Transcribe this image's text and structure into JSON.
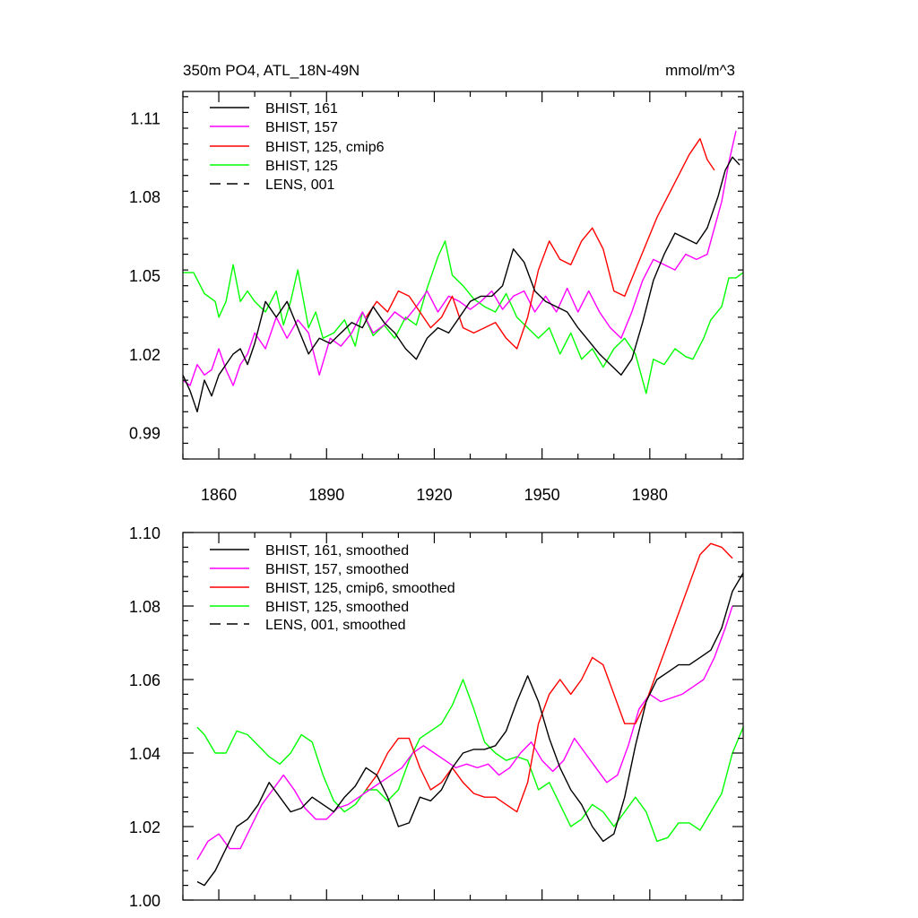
{
  "chart_data": [
    {
      "type": "line",
      "title": "350m PO4, ATL_18N-49N",
      "units": "mmol/m^3",
      "xlim": [
        1850,
        2006
      ],
      "ylim": [
        0.98,
        1.12
      ],
      "xticks": [
        1860,
        1890,
        1920,
        1950,
        1980
      ],
      "yticks": [
        0.99,
        1.02,
        1.05,
        1.08,
        1.11
      ],
      "ytick_labels": [
        "0.99",
        "1.02",
        "1.05",
        "1.08",
        "1.11"
      ],
      "legend": {
        "position": "top-left",
        "entries": [
          {
            "label": "BHIST, 161",
            "color": "#000000",
            "dash": false
          },
          {
            "label": "BHIST, 157",
            "color": "#ff00ff",
            "dash": false
          },
          {
            "label": "BHIST, 125, cmip6",
            "color": "#ff0000",
            "dash": false
          },
          {
            "label": "BHIST, 125",
            "color": "#00ff00",
            "dash": false
          },
          {
            "label": "LENS, 001",
            "color": "#000000",
            "dash": true
          }
        ]
      },
      "series": [
        {
          "name": "BHIST, 125",
          "color": "#00ff00",
          "x": [
            1850,
            1853,
            1856,
            1859,
            1860,
            1862,
            1864,
            1866,
            1868,
            1870,
            1873,
            1876,
            1878,
            1880,
            1882,
            1885,
            1887,
            1889,
            1892,
            1895,
            1898,
            1900,
            1903,
            1906,
            1909,
            1912,
            1915,
            1918,
            1921,
            1923,
            1925,
            1928,
            1931,
            1934,
            1937,
            1940,
            1943,
            1946,
            1949,
            1952,
            1955,
            1958,
            1961,
            1964,
            1967,
            1970,
            1973,
            1976,
            1979,
            1981,
            1984,
            1987,
            1990,
            1992,
            1995,
            1997,
            2000,
            2002,
            2004,
            2006
          ],
          "y": [
            1.051,
            1.051,
            1.043,
            1.04,
            1.034,
            1.04,
            1.054,
            1.04,
            1.044,
            1.04,
            1.036,
            1.044,
            1.031,
            1.04,
            1.052,
            1.03,
            1.036,
            1.026,
            1.028,
            1.033,
            1.023,
            1.036,
            1.027,
            1.031,
            1.026,
            1.034,
            1.031,
            1.045,
            1.057,
            1.063,
            1.05,
            1.046,
            1.041,
            1.038,
            1.036,
            1.043,
            1.034,
            1.03,
            1.026,
            1.03,
            1.02,
            1.028,
            1.018,
            1.022,
            1.015,
            1.022,
            1.026,
            1.02,
            1.005,
            1.018,
            1.016,
            1.022,
            1.019,
            1.018,
            1.026,
            1.033,
            1.038,
            1.049,
            1.049,
            1.051
          ]
        },
        {
          "name": "BHIST, 157",
          "color": "#ff00ff",
          "x": [
            1850,
            1852,
            1854,
            1856,
            1858,
            1860,
            1862,
            1864,
            1866,
            1868,
            1870,
            1873,
            1876,
            1879,
            1882,
            1885,
            1888,
            1891,
            1894,
            1897,
            1900,
            1903,
            1906,
            1909,
            1912,
            1915,
            1918,
            1921,
            1924,
            1927,
            1930,
            1933,
            1936,
            1939,
            1942,
            1945,
            1948,
            1951,
            1954,
            1957,
            1960,
            1963,
            1966,
            1969,
            1972,
            1975,
            1978,
            1981,
            1984,
            1987,
            1990,
            1993,
            1996,
            1998,
            2000,
            2002,
            2004
          ],
          "y": [
            1.01,
            1.008,
            1.016,
            1.012,
            1.014,
            1.022,
            1.014,
            1.008,
            1.016,
            1.02,
            1.028,
            1.022,
            1.034,
            1.026,
            1.033,
            1.028,
            1.012,
            1.026,
            1.023,
            1.028,
            1.036,
            1.028,
            1.031,
            1.036,
            1.033,
            1.038,
            1.044,
            1.036,
            1.042,
            1.04,
            1.037,
            1.04,
            1.044,
            1.037,
            1.042,
            1.044,
            1.036,
            1.042,
            1.036,
            1.045,
            1.036,
            1.044,
            1.036,
            1.03,
            1.026,
            1.036,
            1.048,
            1.056,
            1.054,
            1.052,
            1.058,
            1.056,
            1.058,
            1.068,
            1.078,
            1.093,
            1.105
          ]
        },
        {
          "name": "BHIST, 125, cmip6",
          "color": "#ff0000",
          "x": [
            1901,
            1904,
            1907,
            1910,
            1913,
            1916,
            1919,
            1922,
            1925,
            1928,
            1931,
            1934,
            1937,
            1940,
            1943,
            1946,
            1949,
            1952,
            1955,
            1958,
            1961,
            1964,
            1967,
            1970,
            1973,
            1976,
            1979,
            1982,
            1985,
            1988,
            1991,
            1994,
            1996,
            1998
          ],
          "y": [
            1.034,
            1.04,
            1.036,
            1.044,
            1.042,
            1.036,
            1.03,
            1.034,
            1.042,
            1.03,
            1.028,
            1.03,
            1.032,
            1.026,
            1.022,
            1.034,
            1.052,
            1.063,
            1.056,
            1.054,
            1.063,
            1.068,
            1.06,
            1.044,
            1.042,
            1.052,
            1.062,
            1.072,
            1.08,
            1.088,
            1.096,
            1.102,
            1.094,
            1.09
          ]
        },
        {
          "name": "BHIST, 161",
          "color": "#000000",
          "x": [
            1850,
            1852,
            1854,
            1856,
            1858,
            1860,
            1862,
            1864,
            1866,
            1868,
            1870,
            1873,
            1876,
            1879,
            1882,
            1885,
            1888,
            1891,
            1894,
            1897,
            1900,
            1903,
            1906,
            1909,
            1912,
            1915,
            1918,
            1921,
            1924,
            1927,
            1930,
            1933,
            1936,
            1939,
            1942,
            1945,
            1948,
            1951,
            1954,
            1957,
            1960,
            1963,
            1966,
            1969,
            1972,
            1975,
            1978,
            1981,
            1984,
            1987,
            1990,
            1993,
            1996,
            1999,
            2001,
            2003,
            2005
          ],
          "y": [
            1.012,
            1.006,
            0.998,
            1.01,
            1.004,
            1.012,
            1.016,
            1.02,
            1.022,
            1.016,
            1.024,
            1.04,
            1.034,
            1.04,
            1.03,
            1.02,
            1.026,
            1.024,
            1.028,
            1.032,
            1.03,
            1.038,
            1.032,
            1.028,
            1.022,
            1.018,
            1.026,
            1.03,
            1.028,
            1.034,
            1.04,
            1.042,
            1.042,
            1.046,
            1.06,
            1.055,
            1.044,
            1.04,
            1.038,
            1.036,
            1.03,
            1.025,
            1.02,
            1.016,
            1.012,
            1.018,
            1.032,
            1.048,
            1.058,
            1.066,
            1.064,
            1.062,
            1.068,
            1.08,
            1.09,
            1.095,
            1.092
          ]
        },
        {
          "name": "LENS, 001",
          "color": "#000000",
          "dash": true,
          "x": [],
          "y": []
        }
      ]
    },
    {
      "type": "line",
      "xlim": [
        1850,
        2006
      ],
      "ylim": [
        1.0,
        1.1
      ],
      "yticks": [
        1.0,
        1.02,
        1.04,
        1.06,
        1.08,
        1.1
      ],
      "ytick_labels": [
        "1.00",
        "1.02",
        "1.04",
        "1.06",
        "1.08",
        "1.10"
      ],
      "legend": {
        "position": "top-left",
        "entries": [
          {
            "label": "BHIST, 161, smoothed",
            "color": "#000000",
            "dash": false
          },
          {
            "label": "BHIST, 157, smoothed",
            "color": "#ff00ff",
            "dash": false
          },
          {
            "label": "BHIST, 125, cmip6, smoothed",
            "color": "#ff0000",
            "dash": false
          },
          {
            "label": "BHIST, 125, smoothed",
            "color": "#00ff00",
            "dash": false
          },
          {
            "label": "LENS, 001, smoothed",
            "color": "#000000",
            "dash": true
          }
        ]
      },
      "series": [
        {
          "name": "BHIST, 125, smoothed",
          "color": "#00ff00",
          "x": [
            1854,
            1856,
            1859,
            1862,
            1865,
            1868,
            1871,
            1874,
            1877,
            1880,
            1883,
            1886,
            1889,
            1892,
            1895,
            1898,
            1901,
            1904,
            1907,
            1910,
            1913,
            1916,
            1919,
            1922,
            1925,
            1928,
            1931,
            1934,
            1937,
            1940,
            1943,
            1946,
            1949,
            1952,
            1955,
            1958,
            1961,
            1964,
            1967,
            1970,
            1973,
            1976,
            1979,
            1982,
            1985,
            1988,
            1991,
            1994,
            1997,
            2000,
            2003,
            2006
          ],
          "y": [
            1.047,
            1.045,
            1.04,
            1.04,
            1.046,
            1.045,
            1.042,
            1.039,
            1.037,
            1.04,
            1.045,
            1.043,
            1.034,
            1.027,
            1.024,
            1.026,
            1.03,
            1.03,
            1.027,
            1.03,
            1.038,
            1.044,
            1.046,
            1.048,
            1.053,
            1.06,
            1.052,
            1.043,
            1.04,
            1.038,
            1.039,
            1.038,
            1.03,
            1.032,
            1.026,
            1.02,
            1.022,
            1.026,
            1.024,
            1.02,
            1.024,
            1.028,
            1.024,
            1.016,
            1.017,
            1.021,
            1.021,
            1.019,
            1.024,
            1.029,
            1.04,
            1.047
          ]
        },
        {
          "name": "BHIST, 157, smoothed",
          "color": "#ff00ff",
          "x": [
            1854,
            1857,
            1860,
            1863,
            1866,
            1869,
            1872,
            1875,
            1878,
            1881,
            1884,
            1887,
            1890,
            1893,
            1896,
            1899,
            1902,
            1905,
            1908,
            1911,
            1914,
            1917,
            1920,
            1923,
            1926,
            1929,
            1932,
            1935,
            1938,
            1941,
            1944,
            1947,
            1950,
            1953,
            1956,
            1959,
            1962,
            1965,
            1968,
            1971,
            1974,
            1977,
            1980,
            1983,
            1986,
            1989,
            1992,
            1995,
            1998,
            2001,
            2003
          ],
          "y": [
            1.011,
            1.016,
            1.018,
            1.014,
            1.014,
            1.02,
            1.026,
            1.03,
            1.034,
            1.03,
            1.025,
            1.022,
            1.022,
            1.025,
            1.026,
            1.028,
            1.03,
            1.032,
            1.034,
            1.036,
            1.04,
            1.042,
            1.04,
            1.038,
            1.036,
            1.037,
            1.036,
            1.037,
            1.034,
            1.036,
            1.04,
            1.043,
            1.038,
            1.035,
            1.038,
            1.044,
            1.04,
            1.036,
            1.032,
            1.034,
            1.042,
            1.052,
            1.056,
            1.054,
            1.055,
            1.056,
            1.058,
            1.06,
            1.066,
            1.074,
            1.08
          ]
        },
        {
          "name": "BHIST, 125, cmip6, smoothed",
          "color": "#ff0000",
          "x": [
            1901,
            1904,
            1907,
            1910,
            1913,
            1916,
            1919,
            1922,
            1925,
            1928,
            1931,
            1934,
            1937,
            1940,
            1943,
            1946,
            1949,
            1952,
            1955,
            1958,
            1961,
            1964,
            1967,
            1970,
            1973,
            1976,
            1979,
            1982,
            1985,
            1988,
            1991,
            1994,
            1997,
            2000,
            2003
          ],
          "y": [
            1.03,
            1.034,
            1.04,
            1.044,
            1.044,
            1.036,
            1.03,
            1.032,
            1.036,
            1.032,
            1.029,
            1.028,
            1.028,
            1.026,
            1.024,
            1.032,
            1.048,
            1.056,
            1.06,
            1.056,
            1.06,
            1.066,
            1.064,
            1.056,
            1.048,
            1.048,
            1.054,
            1.062,
            1.07,
            1.078,
            1.086,
            1.094,
            1.097,
            1.096,
            1.093
          ]
        },
        {
          "name": "BHIST, 161, smoothed",
          "color": "#000000",
          "x": [
            1854,
            1856,
            1859,
            1862,
            1865,
            1868,
            1871,
            1874,
            1877,
            1880,
            1883,
            1886,
            1889,
            1892,
            1895,
            1898,
            1901,
            1904,
            1907,
            1910,
            1913,
            1916,
            1919,
            1922,
            1925,
            1928,
            1931,
            1934,
            1937,
            1940,
            1943,
            1946,
            1949,
            1952,
            1955,
            1958,
            1961,
            1964,
            1967,
            1970,
            1973,
            1976,
            1979,
            1982,
            1985,
            1988,
            1991,
            1994,
            1997,
            2000,
            2003,
            2006
          ],
          "y": [
            1.005,
            1.004,
            1.008,
            1.014,
            1.02,
            1.022,
            1.026,
            1.032,
            1.028,
            1.024,
            1.025,
            1.028,
            1.026,
            1.024,
            1.028,
            1.031,
            1.036,
            1.034,
            1.028,
            1.02,
            1.021,
            1.028,
            1.027,
            1.03,
            1.036,
            1.04,
            1.041,
            1.041,
            1.042,
            1.046,
            1.054,
            1.061,
            1.054,
            1.044,
            1.036,
            1.03,
            1.026,
            1.02,
            1.016,
            1.018,
            1.028,
            1.042,
            1.054,
            1.06,
            1.062,
            1.064,
            1.064,
            1.066,
            1.068,
            1.074,
            1.084,
            1.089
          ]
        },
        {
          "name": "LENS, 001, smoothed",
          "color": "#000000",
          "dash": true,
          "x": [],
          "y": []
        }
      ]
    }
  ]
}
